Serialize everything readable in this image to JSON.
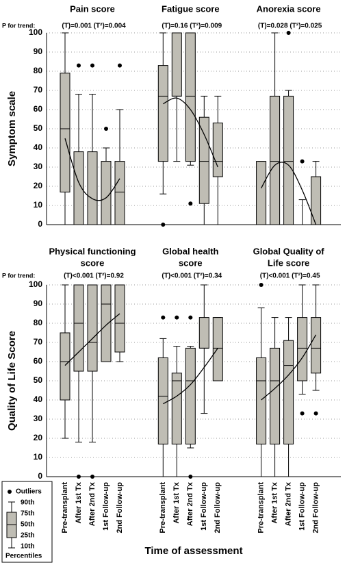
{
  "chart_data": [
    {
      "type": "box",
      "ylabel": "Symptom scale",
      "ylim": [
        0,
        100
      ],
      "yticks": [
        0,
        10,
        20,
        30,
        40,
        50,
        60,
        70,
        80,
        90,
        100
      ],
      "grid": true,
      "box_color": "#bfbdb4",
      "trend_label": "P for trend:",
      "groups": [
        {
          "title": [
            "Pain score"
          ],
          "trend": "(T)=0.001 (T²)=0.004",
          "fit": [
            45,
            22,
            13.5,
            14,
            24
          ],
          "boxes": [
            {
              "p10": 0,
              "p25": 17,
              "p50": 50,
              "p75": 79,
              "p90": 100,
              "outliers": []
            },
            {
              "p10": 0,
              "p25": 0,
              "p50": 0,
              "p75": 38,
              "p90": 68,
              "outliers": [
                83
              ]
            },
            {
              "p10": 0,
              "p25": 0,
              "p50": 0,
              "p75": 38,
              "p90": 68,
              "outliers": [
                83
              ]
            },
            {
              "p10": 0,
              "p25": 0,
              "p50": 0,
              "p75": 33,
              "p90": 40,
              "outliers": [
                50
              ]
            },
            {
              "p10": 0,
              "p25": 0,
              "p50": 17,
              "p75": 33,
              "p90": 60,
              "outliers": [
                83
              ]
            }
          ]
        },
        {
          "title": [
            "Fatigue score"
          ],
          "trend": "(T)=0.16 (T²)=0.009",
          "fit": [
            63,
            66,
            60,
            47,
            30
          ],
          "boxes": [
            {
              "p10": 16,
              "p25": 33,
              "p50": 67,
              "p75": 83,
              "p90": 100,
              "outliers": [
                0
              ]
            },
            {
              "p10": 33,
              "p25": 67,
              "p50": 67,
              "p75": 100,
              "p90": 100,
              "outliers": []
            },
            {
              "p10": 31,
              "p25": 33,
              "p50": 67,
              "p75": 100,
              "p90": 100,
              "outliers": [
                11
              ]
            },
            {
              "p10": 0,
              "p25": 11,
              "p50": 33,
              "p75": 56,
              "p90": 67,
              "outliers": []
            },
            {
              "p10": 0,
              "p25": 25,
              "p50": 33,
              "p75": 53,
              "p90": 67,
              "outliers": []
            }
          ]
        },
        {
          "title": [
            "Anorexia score"
          ],
          "trend": "(T)=0.028 (T²)=0.025",
          "fit": [
            19,
            31,
            31,
            18,
            0
          ],
          "boxes": [
            {
              "p10": 0,
              "p25": 0,
              "p50": 0,
              "p75": 33,
              "p90": 33,
              "outliers": []
            },
            {
              "p10": 0,
              "p25": 0,
              "p50": 33,
              "p75": 67,
              "p90": 100,
              "outliers": []
            },
            {
              "p10": 0,
              "p25": 0,
              "p50": 33,
              "p75": 67,
              "p90": 70,
              "outliers": [
                100
              ]
            },
            {
              "p10": 0,
              "p25": 0,
              "p50": 0,
              "p75": 0,
              "p90": 13,
              "outliers": [
                33
              ]
            },
            {
              "p10": 0,
              "p25": 0,
              "p50": 0,
              "p75": 25,
              "p90": 33,
              "outliers": []
            }
          ]
        }
      ]
    },
    {
      "type": "box",
      "ylabel": "Quality of Life Score",
      "xlabel": "Time of assessment",
      "ylim": [
        0,
        100
      ],
      "yticks": [
        0,
        10,
        20,
        30,
        40,
        50,
        60,
        70,
        80,
        90,
        100
      ],
      "grid": true,
      "box_color": "#bfbdb4",
      "trend_label": "P for trend:",
      "categories": [
        "Pre-transplant",
        "After 1st Tx",
        "After 2nd Tx",
        "1st Follow-up",
        "2nd Follow-up"
      ],
      "groups": [
        {
          "title": [
            "Physical functioning",
            "score"
          ],
          "trend": "(T)<0.001 (T²)=0.92",
          "fit": [
            58,
            65,
            72,
            79,
            85
          ],
          "boxes": [
            {
              "p10": 20,
              "p25": 40,
              "p50": 60,
              "p75": 75,
              "p90": 100,
              "outliers": []
            },
            {
              "p10": 18,
              "p25": 55,
              "p50": 80,
              "p75": 100,
              "p90": 100,
              "outliers": [
                0
              ]
            },
            {
              "p10": 18,
              "p25": 55,
              "p50": 70,
              "p75": 100,
              "p90": 100,
              "outliers": [
                0
              ]
            },
            {
              "p10": 60,
              "p25": 60,
              "p50": 90,
              "p75": 100,
              "p90": 100,
              "outliers": []
            },
            {
              "p10": 60,
              "p25": 65,
              "p50": 80,
              "p75": 100,
              "p90": 100,
              "outliers": []
            }
          ]
        },
        {
          "title": [
            "Global health",
            "score"
          ],
          "trend": "(T)<0.001 (T²)=0.34",
          "fit": [
            38,
            42,
            48,
            57,
            67
          ],
          "boxes": [
            {
              "p10": 0,
              "p25": 17,
              "p50": 42,
              "p75": 62,
              "p90": 72,
              "outliers": [
                83
              ]
            },
            {
              "p10": 0,
              "p25": 17,
              "p50": 50,
              "p75": 54,
              "p90": 68,
              "outliers": [
                83
              ]
            },
            {
              "p10": 15,
              "p25": 17,
              "p50": 50,
              "p75": 67,
              "p90": 68,
              "outliers": [
                83,
                0
              ]
            },
            {
              "p10": 33,
              "p25": 67,
              "p50": 67,
              "p75": 83,
              "p90": 100,
              "outliers": []
            },
            {
              "p10": 50,
              "p25": 50,
              "p50": 67,
              "p75": 83,
              "p90": 83,
              "outliers": []
            }
          ]
        },
        {
          "title": [
            "Global Quality of",
            "Life score"
          ],
          "trend": "(T)<0.001 (T²)=0.45",
          "fit": [
            40,
            46,
            53,
            62,
            74
          ],
          "boxes": [
            {
              "p10": 0,
              "p25": 17,
              "p50": 50,
              "p75": 62,
              "p90": 88,
              "outliers": [
                100
              ]
            },
            {
              "p10": 0,
              "p25": 17,
              "p50": 50,
              "p75": 67,
              "p90": 83,
              "outliers": []
            },
            {
              "p10": 0,
              "p25": 17,
              "p50": 58,
              "p75": 71,
              "p90": 83,
              "outliers": []
            },
            {
              "p10": 43,
              "p25": 50,
              "p50": 67,
              "p75": 83,
              "p90": 100,
              "outliers": [
                33
              ]
            },
            {
              "p10": 45,
              "p25": 54,
              "p50": 67,
              "p75": 83,
              "p90": 100,
              "outliers": [
                33
              ]
            }
          ]
        }
      ]
    }
  ],
  "legend": {
    "outliers": "Outliers",
    "percentiles": [
      "90th",
      "75th",
      "50th",
      "25th",
      "10th"
    ],
    "title": "Percentiles"
  }
}
